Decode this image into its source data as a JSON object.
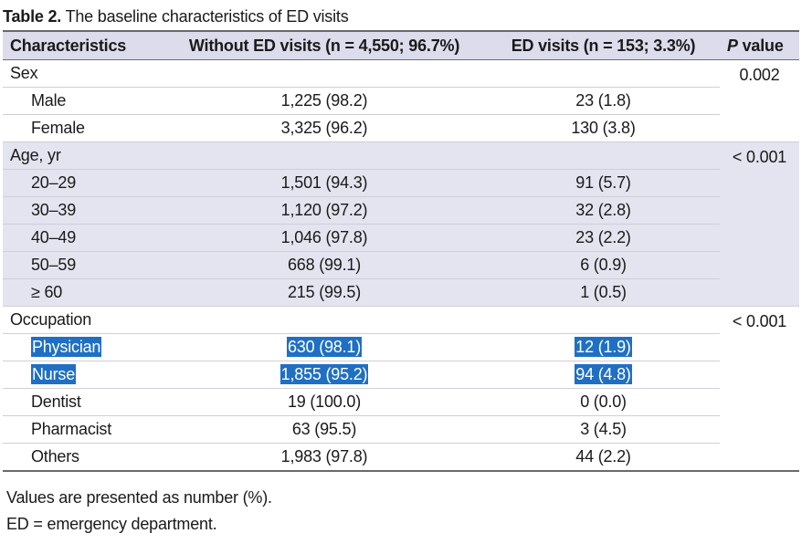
{
  "caption": {
    "label": "Table 2.",
    "text": " The baseline characteristics of ED visits"
  },
  "header": {
    "characteristics": "Characteristics",
    "without_ed": "Without ED visits (n = 4,550; 96.7%)",
    "ed_visits": "ED visits (n = 153; 3.3%)",
    "p_letter": "P",
    "p_rest": " value"
  },
  "groups": [
    {
      "label": "Sex",
      "p_value": "0.002",
      "rows": [
        {
          "label": "Male",
          "without": "1,225 (98.2)",
          "with": "23 (1.8)"
        },
        {
          "label": "Female",
          "without": "3,325 (96.2)",
          "with": "130 (3.8)"
        }
      ]
    },
    {
      "label": "Age, yr",
      "p_value": "< 0.001",
      "rows": [
        {
          "label": "20–29",
          "without": "1,501 (94.3)",
          "with": "91 (5.7)"
        },
        {
          "label": "30–39",
          "without": "1,120 (97.2)",
          "with": "32 (2.8)"
        },
        {
          "label": "40–49",
          "without": "1,046 (97.8)",
          "with": "23 (2.2)"
        },
        {
          "label": "50–59",
          "without": "668 (99.1)",
          "with": "6 (0.9)"
        },
        {
          "label": "≥ 60",
          "without": "215 (99.5)",
          "with": "1 (0.5)"
        }
      ]
    },
    {
      "label": "Occupation",
      "p_value": "< 0.001",
      "rows": [
        {
          "label": "Physician",
          "without": "630 (98.1)",
          "with": "12 (1.9)"
        },
        {
          "label": "Nurse",
          "without": "1,855 (95.2)",
          "with": "94 (4.8)"
        },
        {
          "label": "Dentist",
          "without": "19 (100.0)",
          "with": "0 (0.0)"
        },
        {
          "label": "Pharmacist",
          "without": "63 (95.5)",
          "with": "3 (4.5)"
        },
        {
          "label": "Others",
          "without": "1,983 (97.8)",
          "with": "44 (2.2)"
        }
      ]
    }
  ],
  "notes": [
    "Values are presented as number (%).",
    "ED = emergency department."
  ],
  "colors": {
    "header_bg": "#dcdcec",
    "shaded_group_bg": "#e4e4f0",
    "selection_highlight": "#1f6fc5"
  }
}
